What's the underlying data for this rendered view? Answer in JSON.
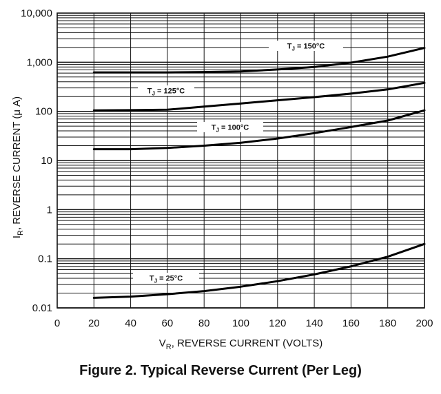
{
  "chart_data": {
    "type": "line",
    "title": "",
    "xlabel": "V_R, REVERSE CURRENT (VOLTS)",
    "xlabel_parts": {
      "main": "V",
      "sub": "R",
      "rest": ", REVERSE CURRENT (VOLTS)"
    },
    "ylabel": "I_R, REVERSE CURRENT (μA)",
    "ylabel_parts": {
      "main": "I",
      "sub": "R",
      "rest": ", REVERSE CURRENT (μ A)"
    },
    "xlim": [
      0,
      200
    ],
    "ylim": [
      0.01,
      10000
    ],
    "yscale": "log",
    "grid": true,
    "x_ticks": [
      "0",
      "20",
      "40",
      "60",
      "80",
      "100",
      "120",
      "140",
      "160",
      "180",
      "200"
    ],
    "y_ticks": [
      "0.01",
      "0.1",
      "1",
      "10",
      "100",
      "1,000",
      "10,000"
    ],
    "series": [
      {
        "name": "T_J = 150°C",
        "label_parts": {
          "main": "T",
          "sub": "J",
          "rest": " = 150°C"
        },
        "x": [
          20,
          40,
          60,
          80,
          100,
          120,
          140,
          160,
          180,
          200
        ],
        "y": [
          620,
          620,
          620,
          630,
          650,
          710,
          800,
          980,
          1300,
          1950
        ]
      },
      {
        "name": "T_J = 125°C",
        "label_parts": {
          "main": "T",
          "sub": "J",
          "rest": " = 125°C"
        },
        "x": [
          20,
          40,
          60,
          80,
          100,
          120,
          140,
          160,
          180,
          200
        ],
        "y": [
          105,
          106,
          108,
          125,
          145,
          168,
          195,
          230,
          280,
          380
        ]
      },
      {
        "name": "T_J = 100°C",
        "label_parts": {
          "main": "T",
          "sub": "J",
          "rest": " = 100°C"
        },
        "x": [
          20,
          40,
          60,
          80,
          100,
          120,
          140,
          160,
          180,
          200
        ],
        "y": [
          17,
          17,
          18,
          20,
          23,
          28,
          36,
          48,
          65,
          105
        ]
      },
      {
        "name": "T_J = 25°C",
        "label_parts": {
          "main": "T",
          "sub": "J",
          "rest": " = 25°C"
        },
        "x": [
          20,
          40,
          60,
          80,
          100,
          120,
          140,
          160,
          180,
          200
        ],
        "y": [
          0.016,
          0.017,
          0.019,
          0.022,
          0.027,
          0.035,
          0.048,
          0.07,
          0.11,
          0.2
        ]
      }
    ]
  },
  "caption": "Figure 2. Typical Reverse Current (Per Leg)"
}
